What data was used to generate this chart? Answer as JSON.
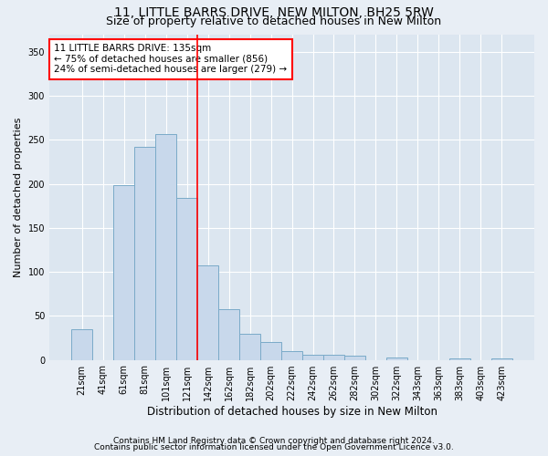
{
  "title": "11, LITTLE BARRS DRIVE, NEW MILTON, BH25 5RW",
  "subtitle": "Size of property relative to detached houses in New Milton",
  "xlabel": "Distribution of detached houses by size in New Milton",
  "ylabel": "Number of detached properties",
  "categories": [
    "21sqm",
    "41sqm",
    "61sqm",
    "81sqm",
    "101sqm",
    "121sqm",
    "142sqm",
    "162sqm",
    "182sqm",
    "202sqm",
    "222sqm",
    "242sqm",
    "262sqm",
    "282sqm",
    "302sqm",
    "322sqm",
    "343sqm",
    "363sqm",
    "383sqm",
    "403sqm",
    "423sqm"
  ],
  "values": [
    35,
    0,
    198,
    242,
    257,
    184,
    107,
    58,
    30,
    20,
    10,
    6,
    6,
    5,
    0,
    3,
    0,
    0,
    2,
    0,
    2
  ],
  "bar_color": "#c8d8eb",
  "bar_edge_color": "#7aaac8",
  "vline_x": 5.5,
  "vline_color": "red",
  "property_label": "11 LITTLE BARRS DRIVE: 135sqm",
  "annotation_line1": "← 75% of detached houses are smaller (856)",
  "annotation_line2": "24% of semi-detached houses are larger (279) →",
  "annotation_box_color": "white",
  "annotation_box_edge_color": "red",
  "ylim": [
    0,
    370
  ],
  "yticks": [
    0,
    50,
    100,
    150,
    200,
    250,
    300,
    350
  ],
  "footer1": "Contains HM Land Registry data © Crown copyright and database right 2024.",
  "footer2": "Contains public sector information licensed under the Open Government Licence v3.0.",
  "background_color": "#e8eef5",
  "plot_background_color": "#dce6f0",
  "title_fontsize": 10,
  "subtitle_fontsize": 9,
  "xlabel_fontsize": 8.5,
  "ylabel_fontsize": 8,
  "tick_fontsize": 7,
  "annotation_fontsize": 7.5,
  "footer_fontsize": 6.5
}
